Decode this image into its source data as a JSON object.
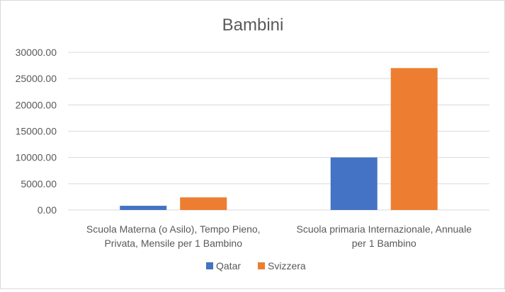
{
  "chart_data": {
    "type": "bar",
    "title": "Bambini",
    "categories": [
      [
        "Scuola Materna (o Asilo), Tempo Pieno,",
        "Privata, Mensile per 1 Bambino"
      ],
      [
        "Scuola primaria Internazionale, Annuale",
        "per 1 Bambino"
      ]
    ],
    "series": [
      {
        "name": "Qatar",
        "values": [
          800,
          10000
        ]
      },
      {
        "name": "Svizzera",
        "values": [
          2400,
          27000
        ]
      }
    ],
    "y_ticks": [
      "0.00",
      "5000.00",
      "10000.00",
      "15000.00",
      "20000.00",
      "25000.00",
      "30000.00"
    ],
    "ylim": [
      0,
      30000
    ],
    "grid": true,
    "legend_position": "bottom",
    "colors": {
      "Qatar": "#4472c4",
      "Svizzera": "#ed7d31",
      "grid": "#d9d9d9",
      "text": "#595959"
    }
  }
}
